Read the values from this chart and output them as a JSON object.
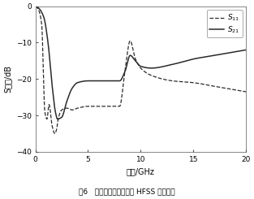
{
  "xlabel": "频率/GHz",
  "ylabel": "S参数/dB",
  "xlim": [
    0,
    20
  ],
  "ylim": [
    -40,
    0
  ],
  "xticks": [
    0,
    5,
    10,
    15,
    20
  ],
  "yticks": [
    -40,
    -30,
    -20,
    -10,
    0
  ],
  "legend_labels": [
    "$S_{11}$",
    "$S_{21}$"
  ],
  "caption": "图6   无反射低通滤波器的 HFSS 仿真结果",
  "line_color": "#2a2a2a",
  "background_color": "#ffffff",
  "s21_points_x": [
    0.0,
    0.3,
    0.8,
    1.2,
    1.6,
    1.9,
    2.1,
    2.5,
    3.0,
    3.5,
    4.0,
    5.0,
    6.0,
    7.0,
    8.0,
    8.5,
    9.0,
    9.5,
    10.0,
    11.0,
    13.0,
    15.0,
    17.0,
    20.0
  ],
  "s21_points_y": [
    0.0,
    -0.5,
    -3.0,
    -10.0,
    -22.0,
    -29.0,
    -31.0,
    -30.5,
    -26.0,
    -22.5,
    -21.0,
    -20.5,
    -20.5,
    -20.5,
    -20.5,
    -18.0,
    -13.5,
    -15.0,
    -16.5,
    -17.0,
    -16.0,
    -14.5,
    -13.5,
    -12.0
  ],
  "s11_points_x": [
    0.0,
    0.3,
    0.6,
    0.9,
    1.1,
    1.3,
    1.6,
    1.85,
    2.0,
    2.2,
    2.5,
    3.0,
    3.5,
    4.0,
    5.0,
    6.0,
    7.0,
    8.0,
    8.5,
    9.0,
    9.5,
    10.0,
    11.0,
    13.0,
    15.0,
    17.0,
    20.0
  ],
  "s11_points_y": [
    0.0,
    -1.0,
    -5.0,
    -29.0,
    -31.0,
    -27.0,
    -33.0,
    -35.0,
    -34.0,
    -30.5,
    -28.5,
    -28.0,
    -28.5,
    -28.0,
    -27.5,
    -27.5,
    -27.5,
    -27.5,
    -18.0,
    -9.5,
    -14.5,
    -17.0,
    -19.0,
    -20.5,
    -21.0,
    -22.0,
    -23.5
  ]
}
